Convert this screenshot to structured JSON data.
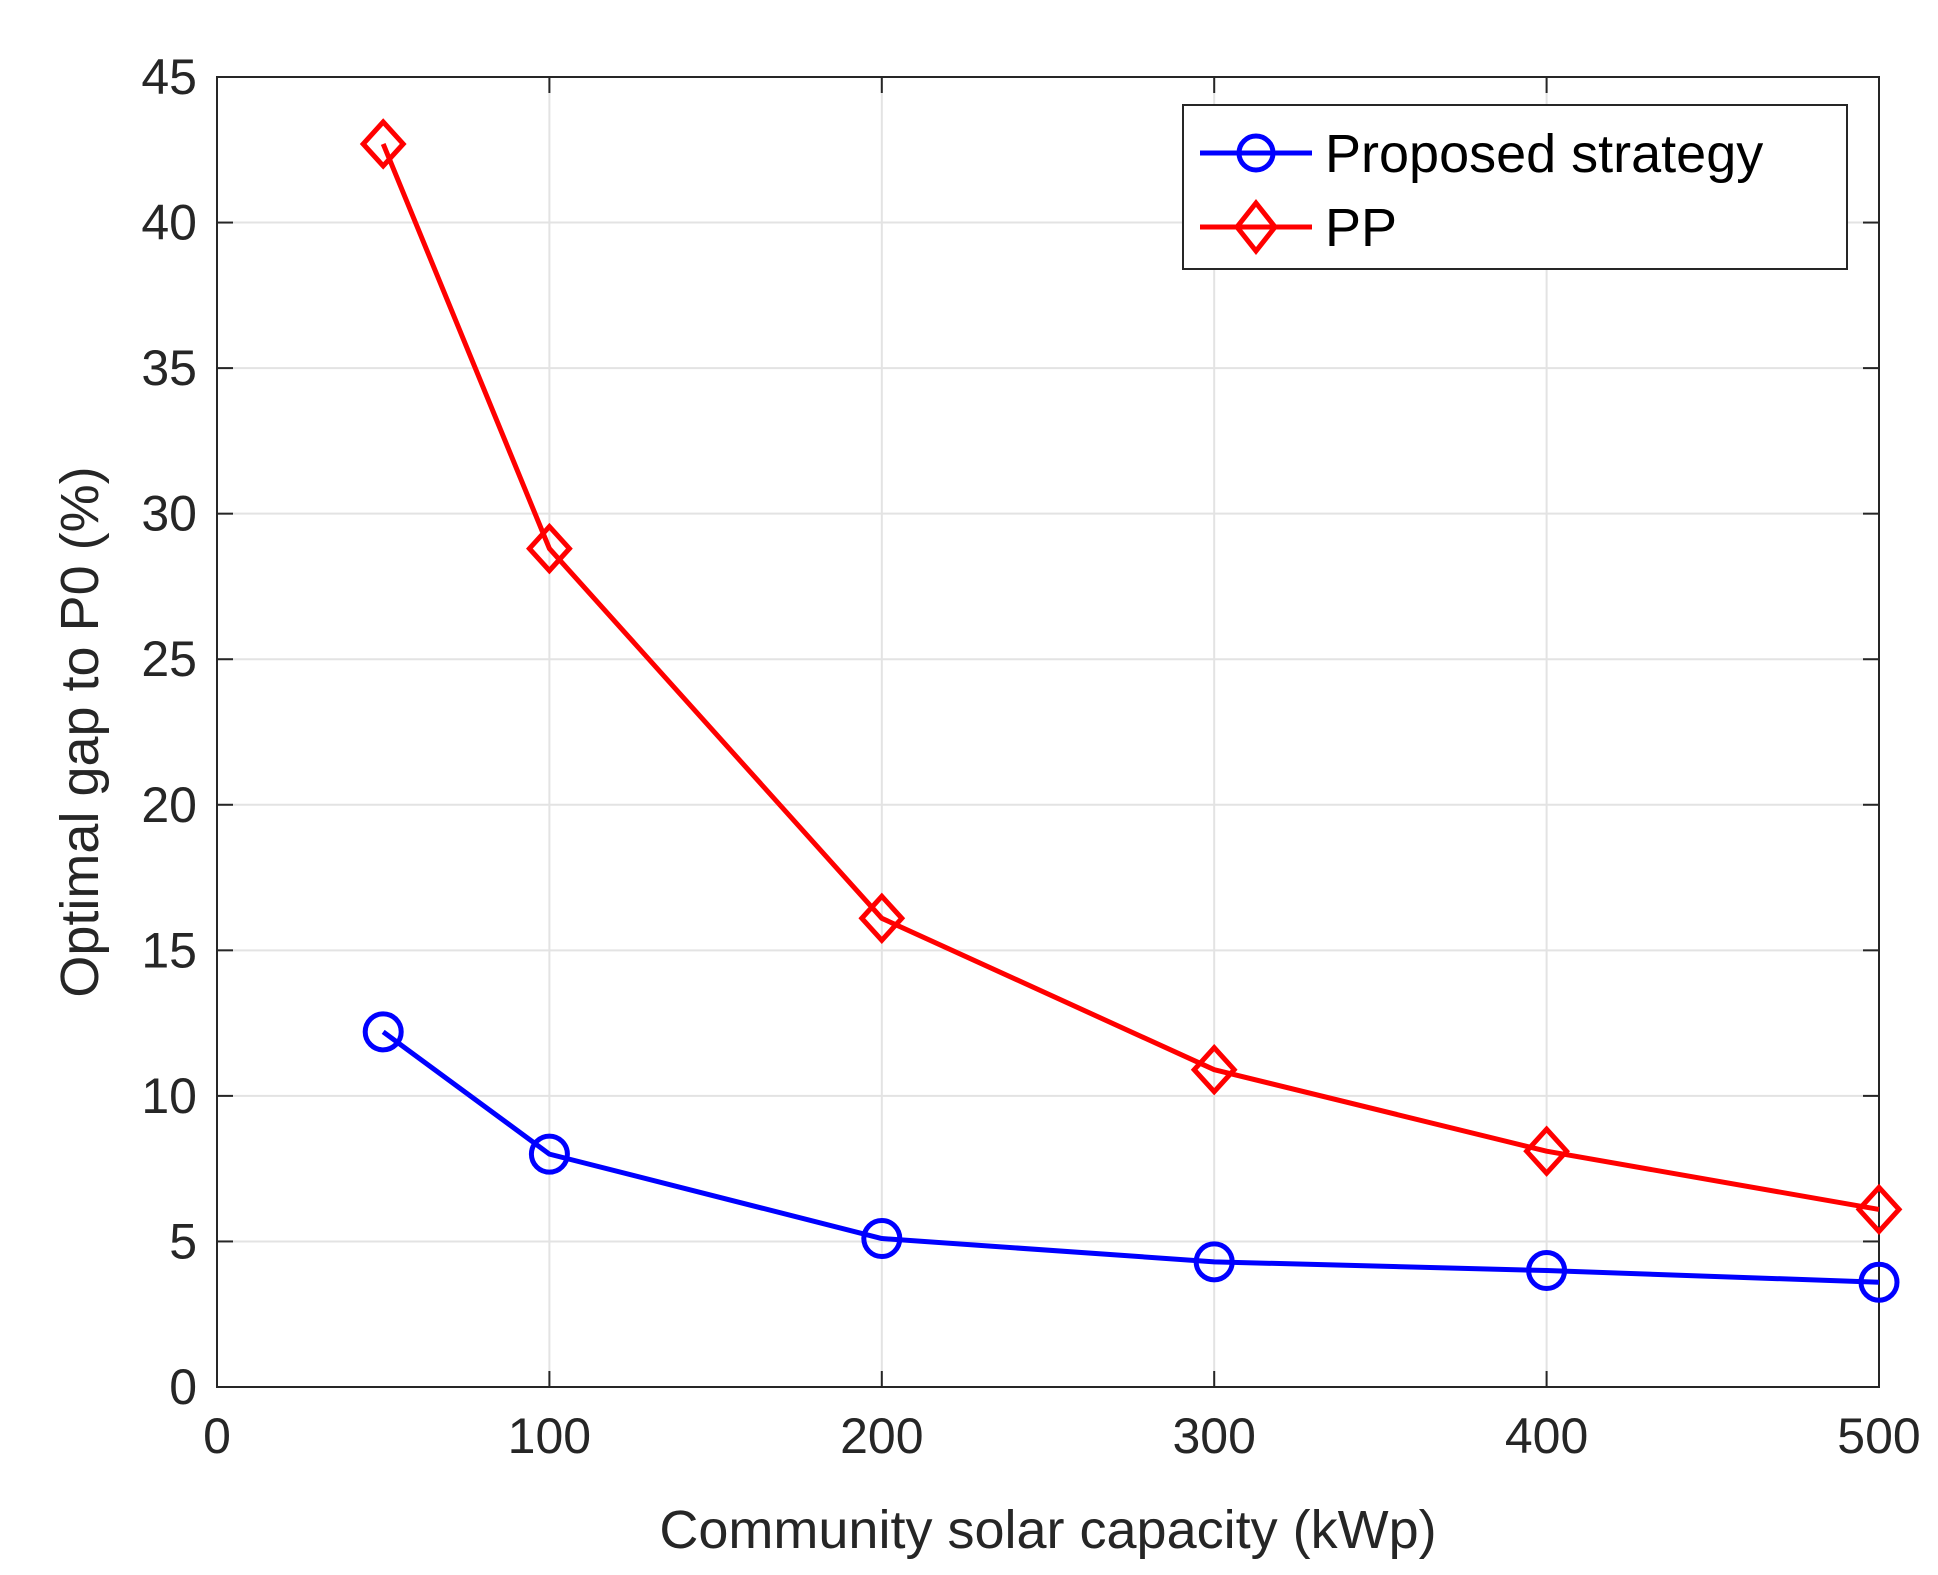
{
  "chart_data": {
    "type": "line",
    "title": "",
    "xlabel": "Community solar capacity (kWp)",
    "ylabel": "Optimal gap to P0 (%)",
    "xlim": [
      0,
      500
    ],
    "ylim": [
      0,
      45
    ],
    "xticks": [
      0,
      100,
      200,
      300,
      400,
      500
    ],
    "yticks": [
      0,
      5,
      10,
      15,
      20,
      25,
      30,
      35,
      40,
      45
    ],
    "xtick_labels": [
      "0",
      "100",
      "200",
      "300",
      "400",
      "500"
    ],
    "ytick_labels": [
      "0",
      "5",
      "10",
      "15",
      "20",
      "25",
      "30",
      "35",
      "40",
      "45"
    ],
    "grid": true,
    "legend_position": "top-right",
    "x": [
      50,
      100,
      200,
      300,
      400,
      500
    ],
    "series": [
      {
        "name": "Proposed strategy",
        "color": "#0000ff",
        "marker": "circle",
        "values": [
          12.2,
          8.0,
          5.1,
          4.3,
          4.0,
          3.6
        ]
      },
      {
        "name": "PP",
        "color": "#ff0000",
        "marker": "diamond",
        "values": [
          42.7,
          28.8,
          16.1,
          10.9,
          8.1,
          6.1
        ]
      }
    ]
  }
}
